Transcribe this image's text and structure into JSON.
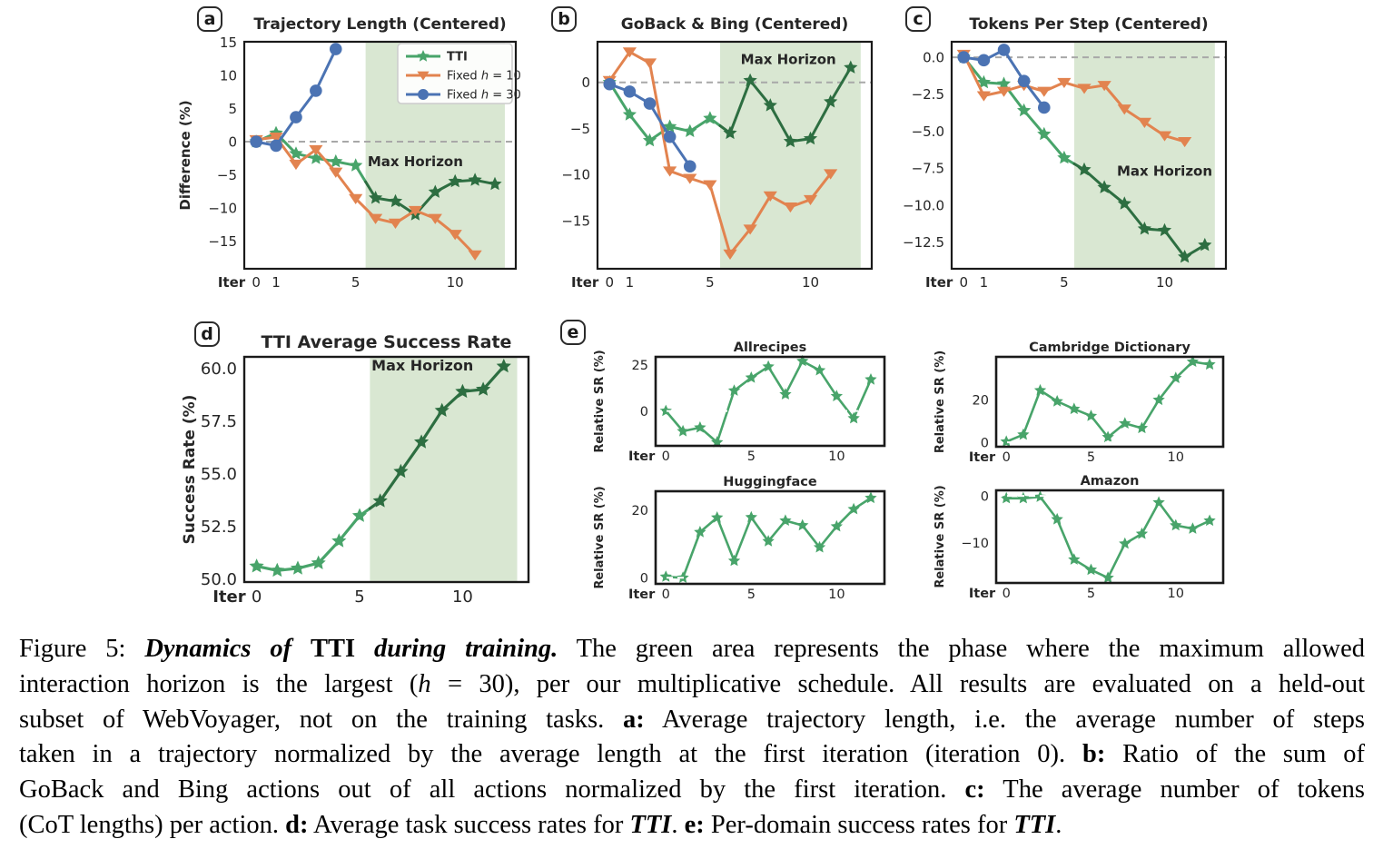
{
  "badges": [
    "a",
    "b",
    "c",
    "d",
    "e"
  ],
  "colors": {
    "tti_light": "#48a46a",
    "tti_dark": "#2d6e41",
    "fixed_h10": "#e2834f",
    "fixed_h30": "#4b73b3",
    "shade": "#d9e7d2",
    "zero_gray": "#a8a8a8",
    "zero_white": "#ffffff",
    "frame": "#1a1a1a",
    "max_horizon_label": "#3d8f5f",
    "legend_bg": "#fcfdfb",
    "legend_border": "#cccccc"
  },
  "chart_data": [
    {
      "panel": "a",
      "type": "line",
      "title": "Trajectory Length (Centered)",
      "ylabel": "Difference (%)",
      "xlabel": "Iter",
      "xlim": [
        -0.6,
        13.05
      ],
      "ylim": [
        -19.2,
        15.1
      ],
      "xticks": [
        [
          0,
          "0"
        ],
        [
          1,
          "1"
        ],
        [
          5,
          "5"
        ],
        [
          10,
          "10"
        ]
      ],
      "yticks": [
        [
          15,
          "15"
        ],
        [
          10,
          "10"
        ],
        [
          5,
          "5"
        ],
        [
          0,
          "0"
        ],
        [
          -5,
          "−5"
        ],
        [
          -10,
          "−10"
        ],
        [
          -15,
          "−15"
        ]
      ],
      "zero_line": {
        "y": 0,
        "color": "zero_gray",
        "on_top": false
      },
      "shade": {
        "x0": 5.5,
        "x1": 12.5,
        "label": "Max Horizon",
        "label_x": 8.0,
        "label_y": -3.7
      },
      "legend": {
        "entries": [
          {
            "parts": [
              [
                "TTI",
                "b"
              ]
            ],
            "marker": "star",
            "color": "tti_light"
          },
          {
            "parts": [
              [
                "Fixed ",
                "n"
              ],
              [
                "h",
                "i"
              ],
              [
                " = 10",
                "n"
              ]
            ],
            "marker": "tri",
            "color": "fixed_h10"
          },
          {
            "parts": [
              [
                "Fixed ",
                "n"
              ],
              [
                "h",
                "i"
              ],
              [
                " = 30",
                "n"
              ]
            ],
            "marker": "circle",
            "color": "fixed_h30"
          }
        ]
      },
      "series": [
        {
          "name": "TTI",
          "marker": "star",
          "color": "tti_light",
          "dark_color": "tti_dark",
          "dark_from": 6,
          "x": [
            0,
            1,
            2,
            3,
            4,
            5,
            6,
            7,
            8,
            9,
            10,
            11,
            12
          ],
          "y": [
            0,
            1.3,
            -1.8,
            -2.5,
            -3.0,
            -3.6,
            -8.5,
            -9.0,
            -11.0,
            -7.6,
            -6.0,
            -5.8,
            -6.4
          ]
        },
        {
          "name": "Fixed h = 10",
          "marker": "tri",
          "color": "fixed_h10",
          "x": [
            0,
            1,
            2,
            3,
            4,
            5,
            6,
            7,
            8,
            9,
            10,
            11
          ],
          "y": [
            0.3,
            0.7,
            -3.4,
            -1.2,
            -4.6,
            -8.6,
            -11.6,
            -12.3,
            -10.4,
            -11.6,
            -14.0,
            -17.1
          ]
        },
        {
          "name": "Fixed h = 30",
          "marker": "circle",
          "color": "fixed_h30",
          "x": [
            0,
            1,
            2,
            3,
            4
          ],
          "y": [
            0,
            -0.6,
            3.7,
            7.7,
            14.0
          ]
        }
      ]
    },
    {
      "panel": "b",
      "type": "line",
      "title": "GoBack & Bing (Centered)",
      "xlabel": "Iter",
      "xlim": [
        -0.6,
        13.05
      ],
      "ylim": [
        -20.2,
        4.4
      ],
      "xticks": [
        [
          0,
          "0"
        ],
        [
          1,
          "1"
        ],
        [
          5,
          "5"
        ],
        [
          10,
          "10"
        ]
      ],
      "yticks": [
        [
          0,
          "0"
        ],
        [
          -5,
          "−5"
        ],
        [
          -10,
          "−10"
        ],
        [
          -15,
          "−15"
        ]
      ],
      "zero_line": {
        "y": 0,
        "color": "zero_gray",
        "on_top": false
      },
      "shade": {
        "x0": 5.5,
        "x1": 12.5,
        "label": "Max Horizon",
        "label_x": 8.9,
        "label_y": 2.0
      },
      "series": [
        {
          "name": "TTI",
          "marker": "star",
          "color": "tti_light",
          "dark_color": "tti_dark",
          "dark_from": 6,
          "x": [
            0,
            1,
            2,
            3,
            4,
            5,
            6,
            7,
            8,
            9,
            10,
            11,
            12
          ],
          "y": [
            0,
            -3.5,
            -6.3,
            -4.8,
            -5.3,
            -3.9,
            -5.5,
            0.2,
            -2.5,
            -6.4,
            -6.1,
            -2.1,
            1.6
          ]
        },
        {
          "name": "Fixed h = 10",
          "marker": "tri",
          "color": "fixed_h10",
          "x": [
            0,
            1,
            2,
            3,
            4,
            5,
            6,
            7,
            8,
            9,
            10,
            11
          ],
          "y": [
            0.2,
            3.3,
            2.1,
            -9.6,
            -10.4,
            -11.1,
            -18.6,
            -15.9,
            -12.3,
            -13.5,
            -12.7,
            -9.9
          ]
        },
        {
          "name": "Fixed h = 30",
          "marker": "circle",
          "color": "fixed_h30",
          "x": [
            0,
            1,
            2,
            3,
            4
          ],
          "y": [
            -0.2,
            -1.0,
            -2.3,
            -5.9,
            -9.1
          ]
        }
      ]
    },
    {
      "panel": "c",
      "type": "line",
      "title": "Tokens Per Step (Centered)",
      "xlabel": "Iter",
      "xlim": [
        -0.6,
        13.05
      ],
      "ylim": [
        -14.3,
        1.05
      ],
      "xticks": [
        [
          0,
          "0"
        ],
        [
          1,
          "1"
        ],
        [
          5,
          "5"
        ],
        [
          10,
          "10"
        ]
      ],
      "yticks": [
        [
          0,
          "0.0"
        ],
        [
          -2.5,
          "−2.5"
        ],
        [
          -5,
          "−5.0"
        ],
        [
          -7.5,
          "−7.5"
        ],
        [
          -10,
          "−10.0"
        ],
        [
          -12.5,
          "−12.5"
        ]
      ],
      "zero_line": {
        "y": 0,
        "color": "zero_gray",
        "on_top": false
      },
      "shade": {
        "x0": 5.5,
        "x1": 12.5,
        "label": "Max Horizon",
        "label_x": 10.0,
        "label_y": -8.0
      },
      "series": [
        {
          "name": "TTI",
          "marker": "star",
          "color": "tti_light",
          "dark_color": "tti_dark",
          "dark_from": 6,
          "x": [
            0,
            1,
            2,
            3,
            4,
            5,
            6,
            7,
            8,
            9,
            10,
            11,
            12
          ],
          "y": [
            0,
            -1.7,
            -1.8,
            -3.6,
            -5.2,
            -6.8,
            -7.6,
            -8.8,
            -9.9,
            -11.6,
            -11.7,
            -13.5,
            -12.7
          ]
        },
        {
          "name": "Fixed h = 10",
          "marker": "tri",
          "color": "fixed_h10",
          "x": [
            0,
            1,
            2,
            3,
            4,
            5,
            6,
            7,
            8,
            9,
            10,
            11
          ],
          "y": [
            0.2,
            -2.6,
            -2.3,
            -1.9,
            -2.3,
            -1.7,
            -2.1,
            -1.9,
            -3.5,
            -4.4,
            -5.3,
            -5.7
          ]
        },
        {
          "name": "Fixed h = 30",
          "marker": "circle",
          "color": "fixed_h30",
          "x": [
            0,
            1,
            2,
            3,
            4
          ],
          "y": [
            0,
            -0.2,
            0.5,
            -1.6,
            -3.4
          ]
        }
      ]
    },
    {
      "panel": "d",
      "type": "line",
      "title": "TTI Average Success Rate",
      "ylabel": "Success Rate (%)",
      "xlabel": "Iter",
      "xlim": [
        -0.6,
        13.2
      ],
      "ylim": [
        49.85,
        60.55
      ],
      "xticks": [
        [
          0,
          "0"
        ],
        [
          5,
          "5"
        ],
        [
          10,
          "10"
        ]
      ],
      "yticks": [
        [
          50,
          "50.0"
        ],
        [
          52.5,
          "52.5"
        ],
        [
          55,
          "55.0"
        ],
        [
          57.5,
          "57.5"
        ],
        [
          60,
          "60.0"
        ]
      ],
      "shade": {
        "x0": 5.5,
        "x1": 12.65,
        "label": "Max Horizon",
        "label_x": 8.05,
        "label_y": 59.9
      },
      "series": [
        {
          "name": "TTI",
          "marker": "star",
          "color": "tti_light",
          "dark_color": "tti_dark",
          "dark_from": 6,
          "x": [
            0,
            1,
            2,
            3,
            4,
            5,
            6,
            7,
            8,
            9,
            10,
            11,
            12
          ],
          "y": [
            50.6,
            50.4,
            50.5,
            50.75,
            51.8,
            53.0,
            53.7,
            55.1,
            56.5,
            58.0,
            58.9,
            59.0,
            60.1
          ]
        }
      ]
    },
    {
      "panel": "e",
      "type": "line",
      "title": "Allrecipes",
      "ylabel": "Relative SR (%)",
      "xlabel": "Iter",
      "xlim": [
        -0.6,
        12.8
      ],
      "ylim": [
        -18.9,
        29.3
      ],
      "xticks": [
        [
          0,
          "0"
        ],
        [
          5,
          "5"
        ],
        [
          10,
          "10"
        ]
      ],
      "yticks": [
        [
          25,
          "25"
        ],
        [
          0,
          "0"
        ]
      ],
      "zero_line": {
        "y": 0,
        "color": "zero_white",
        "on_top": true
      },
      "series": [
        {
          "name": "TTI",
          "marker": "star",
          "color": "tti_light",
          "x": [
            0,
            1,
            2,
            3,
            4,
            5,
            6,
            7,
            8,
            9,
            10,
            11,
            12
          ],
          "y": [
            0,
            -11,
            -9,
            -17,
            11,
            18,
            24,
            9,
            27,
            22,
            8,
            -4,
            17
          ]
        }
      ]
    },
    {
      "panel": "e",
      "type": "line",
      "title": "Cambridge Dictionary",
      "ylabel": "Relative SR (%)",
      "xlabel": "Iter",
      "xlim": [
        -0.6,
        12.8
      ],
      "ylim": [
        -2.1,
        40.3
      ],
      "xticks": [
        [
          0,
          "0"
        ],
        [
          5,
          "5"
        ],
        [
          10,
          "10"
        ]
      ],
      "yticks": [
        [
          20,
          "20"
        ],
        [
          0,
          "0"
        ]
      ],
      "zero_line": {
        "y": 0,
        "color": "zero_white",
        "on_top": true
      },
      "series": [
        {
          "name": "TTI",
          "marker": "star",
          "color": "tti_light",
          "x": [
            0,
            1,
            2,
            3,
            4,
            5,
            6,
            7,
            8,
            9,
            10,
            11,
            12
          ],
          "y": [
            0.3,
            3.6,
            24.5,
            19.3,
            15.7,
            12.4,
            2.4,
            8.9,
            6.7,
            20,
            30.3,
            38,
            36.7
          ]
        }
      ]
    },
    {
      "panel": "e",
      "type": "line",
      "title": "Huggingface",
      "ylabel": "Relative SR (%)",
      "xlabel": "Iter",
      "xlim": [
        -0.6,
        12.8
      ],
      "ylim": [
        -1.8,
        25.6
      ],
      "xticks": [
        [
          0,
          "0"
        ],
        [
          5,
          "5"
        ],
        [
          10,
          "10"
        ]
      ],
      "yticks": [
        [
          20,
          "20"
        ],
        [
          0,
          "0"
        ]
      ],
      "zero_line": {
        "y": 0,
        "color": "zero_white",
        "on_top": true
      },
      "series": [
        {
          "name": "TTI",
          "marker": "star",
          "color": "tti_light",
          "x": [
            0,
            1,
            2,
            3,
            4,
            5,
            6,
            7,
            8,
            9,
            10,
            11,
            12
          ],
          "y": [
            0.3,
            0,
            13.5,
            17.8,
            5.0,
            17.9,
            10.8,
            16.9,
            15.5,
            9.0,
            15.2,
            20.3,
            23.6
          ]
        }
      ]
    },
    {
      "panel": "e",
      "type": "line",
      "title": "Amazon",
      "ylabel": "Relative SR (%)",
      "xlabel": "Iter",
      "xlim": [
        -0.6,
        12.8
      ],
      "ylim": [
        -18.6,
        1.2
      ],
      "xticks": [
        [
          0,
          "0"
        ],
        [
          5,
          "5"
        ],
        [
          10,
          "10"
        ]
      ],
      "yticks": [
        [
          0,
          "0"
        ],
        [
          -10,
          "−10"
        ]
      ],
      "zero_line": {
        "y": 0,
        "color": "zero_white",
        "on_top": true
      },
      "series": [
        {
          "name": "TTI",
          "marker": "star",
          "color": "tti_light",
          "x": [
            0,
            1,
            2,
            3,
            4,
            5,
            6,
            7,
            8,
            9,
            10,
            11,
            12
          ],
          "y": [
            -0.5,
            -0.5,
            -0.2,
            -5.0,
            -13.6,
            -15.8,
            -17.5,
            -10.2,
            -8.1,
            -1.4,
            -6.3,
            -7.0,
            -5.3
          ]
        }
      ]
    }
  ],
  "caption": {
    "lines": [
      {
        "segments": [
          [
            "Figure 5: ",
            "n"
          ],
          [
            "Dynamics of ",
            "bi"
          ],
          [
            "TTI",
            "b"
          ],
          [
            " during training.",
            "bi"
          ],
          [
            " The green area represents the phase where the maximum allowed",
            "n"
          ]
        ]
      },
      {
        "segments": [
          [
            "interaction horizon is the largest (",
            "n"
          ],
          [
            "h",
            "i"
          ],
          [
            " = 30), per our multiplicative schedule. All results are evaluated on a held-out",
            "n"
          ]
        ]
      },
      {
        "segments": [
          [
            "subset of WebVoyager, not on the training tasks. ",
            "n"
          ],
          [
            "a:",
            "b"
          ],
          [
            " Average trajectory length, i.e. the average number of steps",
            "n"
          ]
        ]
      },
      {
        "segments": [
          [
            "taken in a trajectory normalized by the average length at the first iteration (iteration 0). ",
            "n"
          ],
          [
            "b:",
            "b"
          ],
          [
            " Ratio of the sum of",
            "n"
          ]
        ]
      },
      {
        "segments": [
          [
            "GoBack and Bing actions out of all actions normalized by the first iteration. ",
            "n"
          ],
          [
            "c:",
            "b"
          ],
          [
            " The average number of tokens",
            "n"
          ]
        ]
      },
      {
        "segments": [
          [
            "(CoT lengths) per action. ",
            "n"
          ],
          [
            "d:",
            "b"
          ],
          [
            " Average task success rates for ",
            "n"
          ],
          [
            "TTI",
            "bi"
          ],
          [
            ". ",
            "n"
          ],
          [
            "e:",
            "b"
          ],
          [
            " Per-domain success rates for ",
            "n"
          ],
          [
            "TTI",
            "bi"
          ],
          [
            ".",
            "n"
          ]
        ]
      }
    ]
  }
}
